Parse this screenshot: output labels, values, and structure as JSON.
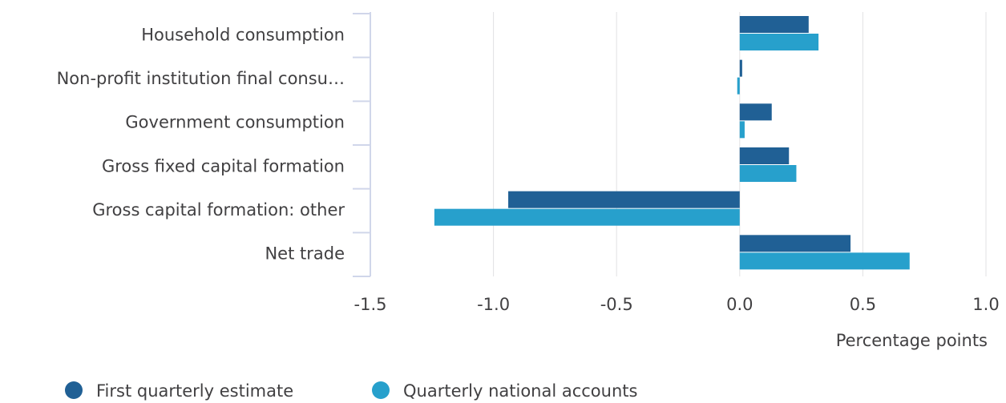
{
  "chart_data": {
    "type": "hbar",
    "xlabel": "Percentage points",
    "categories": [
      "Household consumption",
      "Non-profit institution final consu…",
      "Government consumption",
      "Gross fixed capital formation",
      "Gross capital formation: other",
      "Net trade"
    ],
    "series": [
      {
        "name": "First quarterly estimate",
        "color": "#206095",
        "values": [
          0.28,
          0.01,
          0.13,
          0.2,
          -0.94,
          0.45
        ]
      },
      {
        "name": "Quarterly national accounts",
        "color": "#27a0cc",
        "values": [
          0.32,
          -0.01,
          0.02,
          0.23,
          -1.24,
          0.69
        ]
      }
    ],
    "xlim": [
      -1.5,
      1.0
    ],
    "xticks": [
      -1.5,
      {
        "value": -1.0,
        "label": "-1.0"
      },
      -0.5,
      {
        "value": 0.0,
        "label": "0.0"
      },
      0.5,
      {
        "value": 1.0,
        "label": "1.0"
      }
    ],
    "grid": true
  }
}
